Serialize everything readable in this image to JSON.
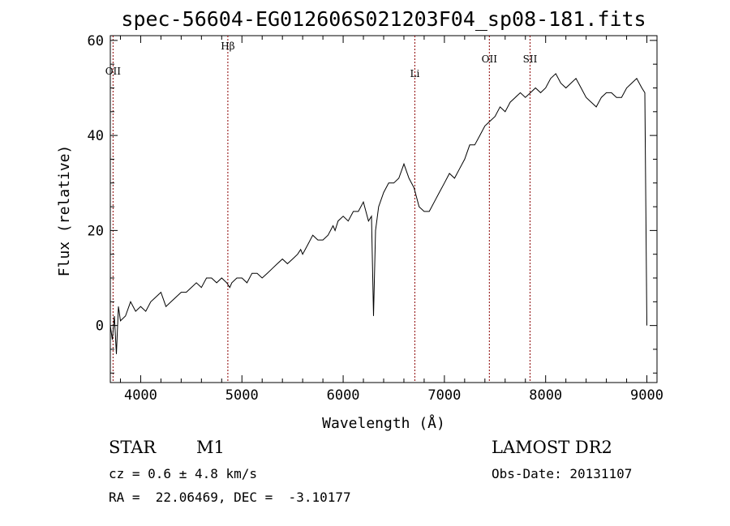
{
  "chart_data": {
    "type": "line",
    "title": "spec-56604-EG012606S021203F04_sp08-181.fits",
    "xlabel": "Wavelength (Å)",
    "ylabel": "Flux (relative)",
    "xlim": [
      3700,
      9100
    ],
    "ylim": [
      -12,
      61
    ],
    "xticks": [
      4000,
      5000,
      6000,
      7000,
      8000,
      9000
    ],
    "yticks": [
      0,
      20,
      40,
      60
    ],
    "grid": false,
    "series": [
      {
        "x": [
          3700,
          3720,
          3740,
          3760,
          3780,
          3800,
          3850,
          3900,
          3950,
          4000,
          4050,
          4100,
          4150,
          4200,
          4250,
          4300,
          4350,
          4400,
          4450,
          4500,
          4550,
          4600,
          4650,
          4700,
          4750,
          4800,
          4850,
          4880,
          4900,
          4950,
          5000,
          5050,
          5100,
          5150,
          5200,
          5250,
          5300,
          5350,
          5400,
          5450,
          5500,
          5550,
          5580,
          5600,
          5650,
          5700,
          5750,
          5800,
          5850,
          5900,
          5920,
          5950,
          6000,
          6050,
          6100,
          6150,
          6200,
          6250,
          6280,
          6300,
          6320,
          6350,
          6400,
          6450,
          6500,
          6550,
          6600,
          6650,
          6700,
          6750,
          6800,
          6850,
          6900,
          6950,
          7000,
          7050,
          7100,
          7150,
          7200,
          7250,
          7300,
          7350,
          7400,
          7450,
          7500,
          7550,
          7600,
          7650,
          7700,
          7750,
          7800,
          7850,
          7900,
          7950,
          8000,
          8050,
          8100,
          8150,
          8200,
          8250,
          8300,
          8350,
          8400,
          8450,
          8500,
          8550,
          8600,
          8650,
          8700,
          8750,
          8800,
          8850,
          8900,
          8950,
          8980,
          9000
        ],
        "y": [
          0,
          -3,
          2,
          -6,
          4,
          1,
          2,
          5,
          3,
          4,
          3,
          5,
          6,
          7,
          4,
          5,
          6,
          7,
          7,
          8,
          9,
          8,
          10,
          10,
          9,
          10,
          9,
          8,
          9,
          10,
          10,
          9,
          11,
          11,
          10,
          11,
          12,
          13,
          14,
          13,
          14,
          15,
          16,
          15,
          17,
          19,
          18,
          18,
          19,
          21,
          20,
          22,
          23,
          22,
          24,
          24,
          26,
          22,
          23,
          2,
          20,
          25,
          28,
          30,
          30,
          31,
          34,
          31,
          29,
          25,
          24,
          24,
          26,
          28,
          30,
          32,
          31,
          33,
          35,
          38,
          38,
          40,
          42,
          43,
          44,
          46,
          45,
          47,
          48,
          49,
          48,
          49,
          50,
          49,
          50,
          52,
          53,
          51,
          50,
          51,
          52,
          50,
          48,
          47,
          46,
          48,
          49,
          49,
          48,
          48,
          50,
          51,
          52,
          50,
          49,
          0
        ]
      }
    ],
    "line_markers": [
      {
        "label": "OII",
        "x": 3727
      },
      {
        "label": "Hβ",
        "x": 4861
      },
      {
        "label": "Li",
        "x": 6708
      },
      {
        "label": "OII",
        "x": 7444
      },
      {
        "label": "SII",
        "x": 7846
      }
    ]
  },
  "info": {
    "class": "STAR",
    "subclass": "M1",
    "survey": "LAMOST DR2",
    "cz": "cz = 0.6 ± 4.8 km/s",
    "obs_date": "Obs-Date: 20131107",
    "coords": "RA =  22.06469, DEC =  -3.10177"
  },
  "colors": {
    "spectrum": "#000000",
    "marker_line": "#8b0000"
  }
}
